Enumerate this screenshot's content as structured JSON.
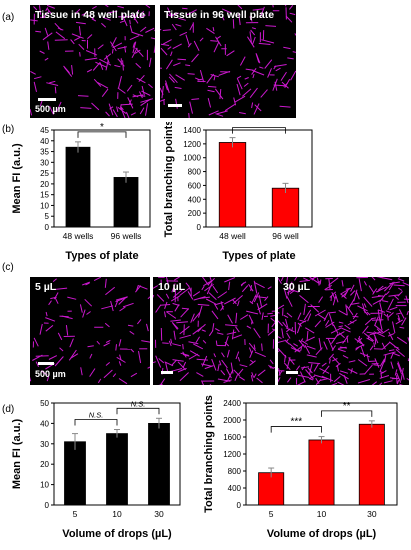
{
  "panels": {
    "a": "(a)",
    "b": "(b)",
    "c": "(c)",
    "d": "(d)"
  },
  "micrographs_a": [
    {
      "label": "Tissue in 48 well plate",
      "scale": "500 µm"
    },
    {
      "label": "Tissue in 96 well plate",
      "scale": ""
    }
  ],
  "micrographs_c": [
    {
      "label": "5 µL",
      "scale": "500 µm"
    },
    {
      "label": "10 µL",
      "scale": ""
    },
    {
      "label": "30 µL",
      "scale": ""
    }
  ],
  "colors": {
    "black_bar": "#000000",
    "red_bar": "#ff0000",
    "magenta": "#e31ce6"
  },
  "chart_data": [
    {
      "type": "bar",
      "id": "b-left",
      "categories": [
        "48 wells",
        "96 wells"
      ],
      "values": [
        37,
        23
      ],
      "errors": [
        2.5,
        2.5
      ],
      "ylabel": "Mean FI (a.u.)",
      "xlabel": "Types of plate",
      "ylim": [
        0,
        45
      ],
      "yticks": [
        0,
        5,
        10,
        15,
        20,
        25,
        30,
        35,
        40,
        45
      ],
      "bar_color": "#000000",
      "significance": [
        {
          "from": 0,
          "to": 1,
          "label": "*"
        }
      ]
    },
    {
      "type": "bar",
      "id": "b-right",
      "categories": [
        "48 well",
        "96 well"
      ],
      "values": [
        1220,
        560
      ],
      "errors": [
        70,
        70
      ],
      "ylabel": "Total branching points",
      "xlabel": "Types of plate",
      "ylim": [
        0,
        1400
      ],
      "yticks": [
        0,
        200,
        400,
        600,
        800,
        1000,
        1200,
        1400
      ],
      "bar_color": "#ff0000",
      "significance": [
        {
          "from": 0,
          "to": 1,
          "label": "*"
        }
      ]
    },
    {
      "type": "bar",
      "id": "d-left",
      "categories": [
        "5",
        "10",
        "30"
      ],
      "values": [
        31,
        35,
        40
      ],
      "errors": [
        4,
        2,
        2.5
      ],
      "ylabel": "Mean FI (a.u.)",
      "xlabel": "Volume of drops (µL)",
      "ylim": [
        0,
        50
      ],
      "yticks": [
        0,
        10,
        20,
        30,
        40,
        50
      ],
      "bar_color": "#000000",
      "significance": [
        {
          "from": 0,
          "to": 1,
          "label": "N.S."
        },
        {
          "from": 1,
          "to": 2,
          "label": "N.S."
        },
        {
          "from": 0,
          "to": 2,
          "label": "*"
        }
      ]
    },
    {
      "type": "bar",
      "id": "d-right",
      "categories": [
        "5",
        "10",
        "30"
      ],
      "values": [
        760,
        1530,
        1900
      ],
      "errors": [
        110,
        80,
        80
      ],
      "ylabel": "Total branching points",
      "xlabel": "Volume of drops (µL)",
      "ylim": [
        0,
        2400
      ],
      "yticks": [
        0,
        400,
        800,
        1200,
        1600,
        2000,
        2400
      ],
      "bar_color": "#ff0000",
      "significance": [
        {
          "from": 0,
          "to": 1,
          "label": "***"
        },
        {
          "from": 1,
          "to": 2,
          "label": "**"
        },
        {
          "from": 0,
          "to": 2,
          "label": "***"
        }
      ]
    }
  ]
}
